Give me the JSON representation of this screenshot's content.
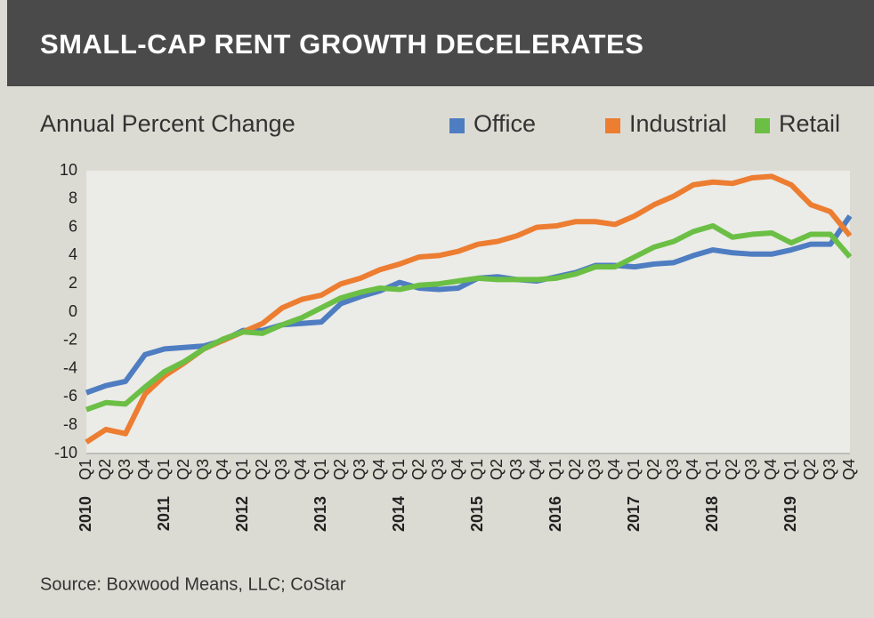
{
  "chart_data": {
    "type": "line",
    "title": "SMALL-CAP RENT GROWTH DECELERATES",
    "subtitle": "Annual Percent Change",
    "source": "Source: Boxwood Means, LLC; CoStar",
    "categories": [
      "Q1",
      "Q2",
      "Q3",
      "Q4",
      "Q1",
      "Q2",
      "Q3",
      "Q4",
      "Q1",
      "Q2",
      "Q3",
      "Q4",
      "Q1",
      "Q2",
      "Q3",
      "Q4",
      "Q1",
      "Q2",
      "Q3",
      "Q4",
      "Q1",
      "Q2",
      "Q3",
      "Q4",
      "Q1",
      "Q2",
      "Q3",
      "Q4",
      "Q1",
      "Q2",
      "Q3",
      "Q4",
      "Q1",
      "Q2",
      "Q3",
      "Q4",
      "Q1",
      "Q2",
      "Q3",
      "Q4"
    ],
    "years": [
      "2010",
      "2011",
      "2012",
      "2013",
      "2014",
      "2015",
      "2016",
      "2017",
      "2018",
      "2019"
    ],
    "series": [
      {
        "name": "Office",
        "color": "#4f7dc1",
        "values": [
          -5.7,
          -5.2,
          -4.9,
          -3.0,
          -2.6,
          -2.5,
          -2.4,
          -2.0,
          -1.3,
          -1.3,
          -0.9,
          -0.8,
          -0.7,
          0.6,
          1.1,
          1.5,
          2.1,
          1.7,
          1.6,
          1.7,
          2.4,
          2.5,
          2.3,
          2.2,
          2.5,
          2.8,
          3.3,
          3.3,
          3.2,
          3.4,
          3.5,
          4.0,
          4.4,
          4.2,
          4.1,
          4.1,
          4.4,
          4.8,
          4.8,
          6.8
        ]
      },
      {
        "name": "Industrial",
        "color": "#ec7d31",
        "values": [
          -9.2,
          -8.3,
          -8.6,
          -5.8,
          -4.5,
          -3.6,
          -2.6,
          -2.0,
          -1.4,
          -0.8,
          0.3,
          0.9,
          1.2,
          2.0,
          2.4,
          3.0,
          3.4,
          3.9,
          4.0,
          4.3,
          4.8,
          5.0,
          5.4,
          6.0,
          6.1,
          6.4,
          6.4,
          6.2,
          6.8,
          7.6,
          8.2,
          9.0,
          9.2,
          9.1,
          9.5,
          9.6,
          9.0,
          7.6,
          7.1,
          5.4
        ]
      },
      {
        "name": "Retail",
        "color": "#6bbf45",
        "values": [
          -6.9,
          -6.4,
          -6.5,
          -5.3,
          -4.2,
          -3.5,
          -2.6,
          -1.9,
          -1.4,
          -1.5,
          -0.9,
          -0.4,
          0.3,
          1.0,
          1.4,
          1.7,
          1.6,
          1.9,
          2.0,
          2.2,
          2.4,
          2.3,
          2.3,
          2.3,
          2.4,
          2.7,
          3.2,
          3.2,
          3.9,
          4.6,
          5.0,
          5.7,
          6.1,
          5.3,
          5.5,
          5.6,
          4.9,
          5.5,
          5.5,
          3.9
        ]
      }
    ],
    "ylim": [
      -10,
      10
    ],
    "yticks": [
      -10,
      -8,
      -6,
      -4,
      -2,
      0,
      2,
      4,
      6,
      8,
      10
    ],
    "grid": false,
    "legend": "top-right"
  }
}
